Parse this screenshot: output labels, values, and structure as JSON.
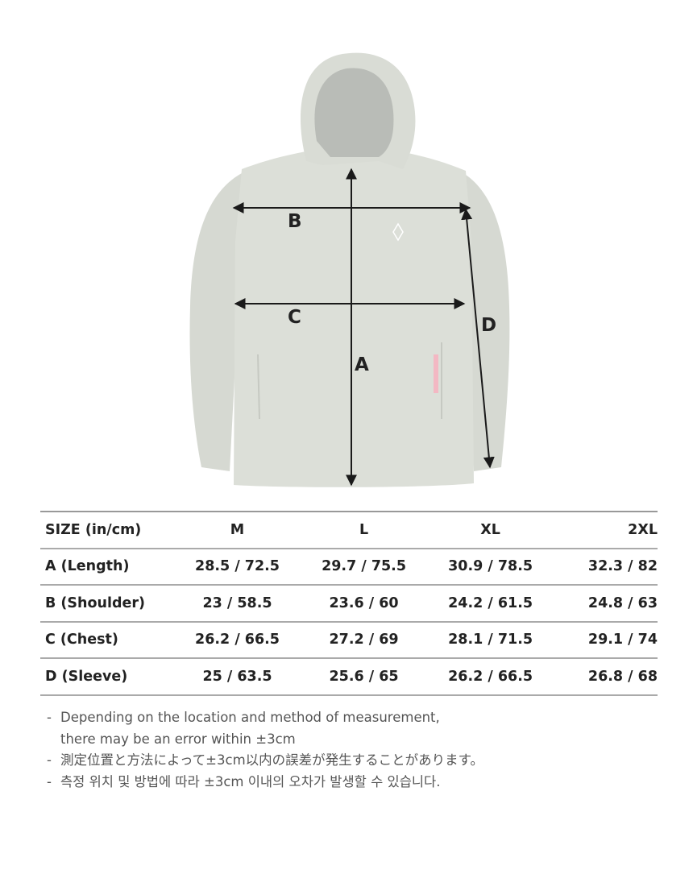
{
  "diagram": {
    "labels": {
      "a": "A",
      "b": "B",
      "c": "C",
      "d": "D"
    },
    "garment_color": "#dcdfd8",
    "arrow_color": "#1a1a1a"
  },
  "table": {
    "headers": [
      "SIZE (in/cm)",
      "M",
      "L",
      "XL",
      "2XL"
    ],
    "rows": [
      [
        "A (Length)",
        "28.5 / 72.5",
        "29.7 / 75.5",
        "30.9 / 78.5",
        "32.3 / 82"
      ],
      [
        "B (Shoulder)",
        "23 / 58.5",
        "23.6 / 60",
        "24.2 / 61.5",
        "24.8 / 63"
      ],
      [
        "C (Chest)",
        "26.2 / 66.5",
        "27.2 / 69",
        "28.1 / 71.5",
        "29.1 / 74"
      ],
      [
        "D (Sleeve)",
        "25 / 63.5",
        "25.6 / 65",
        "26.2 / 66.5",
        "26.8 / 68"
      ]
    ]
  },
  "notes": [
    {
      "dash": "-",
      "lines": [
        "Depending on the location and method of measurement,",
        "there may be an error within ±3cm"
      ]
    },
    {
      "dash": "-",
      "lines": [
        "測定位置と方法によって±3cm以内の誤差が発生することがあります。"
      ]
    },
    {
      "dash": "-",
      "lines": [
        "측정 위치 및 방법에 따라 ±3cm 이내의 오차가 발생할 수 있습니다."
      ]
    }
  ]
}
